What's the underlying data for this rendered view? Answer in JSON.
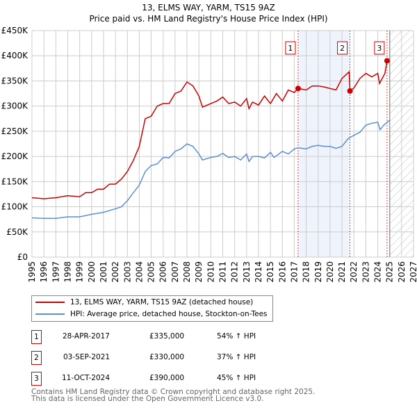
{
  "title": "13, ELMS WAY, YARM, TS15 9AZ",
  "subtitle": "Price paid vs. HM Land Registry's House Price Index (HPI)",
  "chart_data": {
    "type": "line",
    "xlim": [
      1995,
      2027
    ],
    "ylim": [
      0,
      450000
    ],
    "yticks": [
      {
        "v": 0,
        "label": "£0"
      },
      {
        "v": 50000,
        "label": "£50K"
      },
      {
        "v": 100000,
        "label": "£100K"
      },
      {
        "v": 150000,
        "label": "£150K"
      },
      {
        "v": 200000,
        "label": "£200K"
      },
      {
        "v": 250000,
        "label": "£250K"
      },
      {
        "v": 300000,
        "label": "£300K"
      },
      {
        "v": 350000,
        "label": "£350K"
      },
      {
        "v": 400000,
        "label": "£400K"
      },
      {
        "v": 450000,
        "label": "£450K"
      }
    ],
    "xticks": [
      "1995",
      "1996",
      "1997",
      "1998",
      "1999",
      "2000",
      "2001",
      "2002",
      "2003",
      "2004",
      "2005",
      "2006",
      "2007",
      "2008",
      "2009",
      "2010",
      "2011",
      "2012",
      "2013",
      "2014",
      "2015",
      "2016",
      "2017",
      "2018",
      "2019",
      "2020",
      "2021",
      "2022",
      "2023",
      "2024",
      "2025",
      "2026",
      "2027"
    ],
    "series": [
      {
        "name": "13, ELMS WAY, YARM, TS15 9AZ (detached house)",
        "color": "#cc0000",
        "x": [
          1995,
          1996,
          1997,
          1998,
          1999,
          1999.5,
          2000,
          2000.5,
          2001,
          2001.5,
          2002,
          2002.5,
          2003,
          2003.5,
          2004,
          2004.5,
          2005,
          2005.5,
          2006,
          2006.5,
          2007,
          2007.5,
          2008,
          2008.5,
          2009,
          2009.3,
          2010,
          2010.5,
          2011,
          2011.5,
          2012,
          2012.5,
          2013,
          2013.2,
          2013.5,
          2014,
          2014.5,
          2015,
          2015.5,
          2016,
          2016.5,
          2017,
          2017.32,
          2018,
          2018.5,
          2019,
          2019.5,
          2020,
          2020.5,
          2021,
          2021.6,
          2021.67,
          2022,
          2022.5,
          2023,
          2023.5,
          2024,
          2024.15,
          2024.6,
          2024.78,
          2024.9
        ],
        "y": [
          118000,
          116000,
          118000,
          122000,
          120000,
          128000,
          128000,
          135000,
          135000,
          145000,
          145000,
          155000,
          170000,
          192000,
          220000,
          275000,
          280000,
          300000,
          305000,
          305000,
          325000,
          330000,
          348000,
          340000,
          320000,
          298000,
          305000,
          310000,
          318000,
          305000,
          308000,
          300000,
          315000,
          295000,
          308000,
          302000,
          320000,
          305000,
          325000,
          310000,
          332000,
          327000,
          335000,
          332000,
          340000,
          340000,
          338000,
          335000,
          332000,
          355000,
          368000,
          330000,
          336000,
          355000,
          365000,
          358000,
          365000,
          345000,
          365000,
          390000,
          392000
        ]
      },
      {
        "name": "HPI: Average price, detached house, Stockton-on-Tees",
        "color": "#5b8fd4",
        "x": [
          1995,
          1996,
          1997,
          1998,
          1999,
          2000,
          2001,
          2002,
          2002.5,
          2003,
          2003.5,
          2004,
          2004.5,
          2005,
          2005.5,
          2006,
          2006.5,
          2007,
          2007.5,
          2008,
          2008.5,
          2009,
          2009.3,
          2010,
          2010.5,
          2011,
          2011.5,
          2012,
          2012.5,
          2013,
          2013.2,
          2013.5,
          2014,
          2014.5,
          2015,
          2015.3,
          2016,
          2016.5,
          2017,
          2017.3,
          2018,
          2018.5,
          2019,
          2019.5,
          2020,
          2020.5,
          2021,
          2021.5,
          2022,
          2022.5,
          2023,
          2023.5,
          2024,
          2024.2,
          2024.5,
          2025
        ],
        "y": [
          78000,
          77000,
          77000,
          80000,
          80000,
          85000,
          89000,
          96000,
          100000,
          112000,
          128000,
          143000,
          170000,
          182000,
          185000,
          198000,
          197000,
          210000,
          215000,
          225000,
          220000,
          205000,
          193000,
          198000,
          200000,
          206000,
          198000,
          200000,
          193000,
          205000,
          190000,
          200000,
          200000,
          197000,
          208000,
          198000,
          210000,
          205000,
          215000,
          217000,
          215000,
          220000,
          222000,
          220000,
          220000,
          216000,
          220000,
          235000,
          242000,
          248000,
          262000,
          266000,
          268000,
          253000,
          262000,
          272000
        ]
      }
    ],
    "sales": [
      {
        "label": "1",
        "x": 2017.32,
        "y": 335000
      },
      {
        "label": "2",
        "x": 2021.67,
        "y": 330000
      },
      {
        "label": "3",
        "x": 2024.78,
        "y": 390000
      }
    ],
    "forecast_start": 2025.0
  },
  "legend": [
    "13, ELMS WAY, YARM, TS15 9AZ (detached house)",
    "HPI: Average price, detached house, Stockton-on-Tees"
  ],
  "table": [
    {
      "num": "1",
      "date": "28-APR-2017",
      "price": "£335,000",
      "hpi": "54% ↑ HPI"
    },
    {
      "num": "2",
      "date": "03-SEP-2021",
      "price": "£330,000",
      "hpi": "37% ↑ HPI"
    },
    {
      "num": "3",
      "date": "11-OCT-2024",
      "price": "£390,000",
      "hpi": "45% ↑ HPI"
    }
  ],
  "footer": [
    "Contains HM Land Registry data © Crown copyright and database right 2025.",
    "This data is licensed under the Open Government Licence v3.0."
  ]
}
